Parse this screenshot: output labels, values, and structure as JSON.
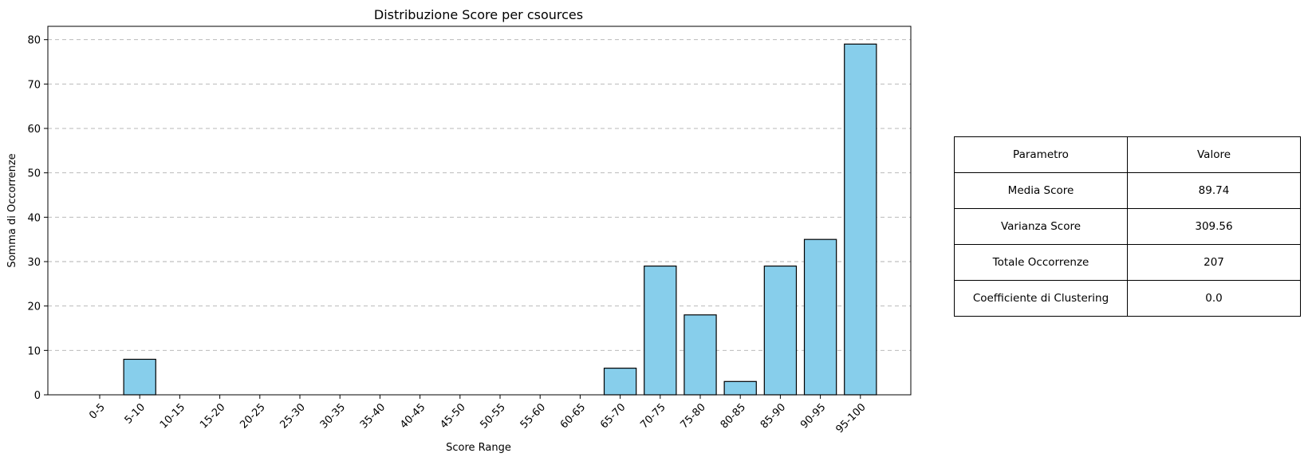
{
  "chart_data": {
    "type": "bar",
    "title": "Distribuzione Score per csources",
    "xlabel": "Score Range",
    "ylabel": "Somma di Occorrenze",
    "categories": [
      "0-5",
      "5-10",
      "10-15",
      "15-20",
      "20-25",
      "25-30",
      "30-35",
      "35-40",
      "40-45",
      "45-50",
      "50-55",
      "55-60",
      "60-65",
      "65-70",
      "70-75",
      "75-80",
      "80-85",
      "85-90",
      "90-95",
      "95-100"
    ],
    "values": [
      0,
      8,
      0,
      0,
      0,
      0,
      0,
      0,
      0,
      0,
      0,
      0,
      0,
      6,
      29,
      18,
      3,
      29,
      35,
      79
    ],
    "ylim": [
      0,
      83
    ],
    "yticks": [
      0,
      10,
      20,
      30,
      40,
      50,
      60,
      70,
      80
    ],
    "grid": "y",
    "bar_color": "#87ceeb",
    "edge_color": "#000000"
  },
  "table": {
    "header": [
      "Parametro",
      "Valore"
    ],
    "rows": [
      [
        "Media Score",
        "89.74"
      ],
      [
        "Varianza Score",
        "309.56"
      ],
      [
        "Totale Occorrenze",
        "207"
      ],
      [
        "Coefficiente di Clustering",
        "0.0"
      ]
    ]
  }
}
